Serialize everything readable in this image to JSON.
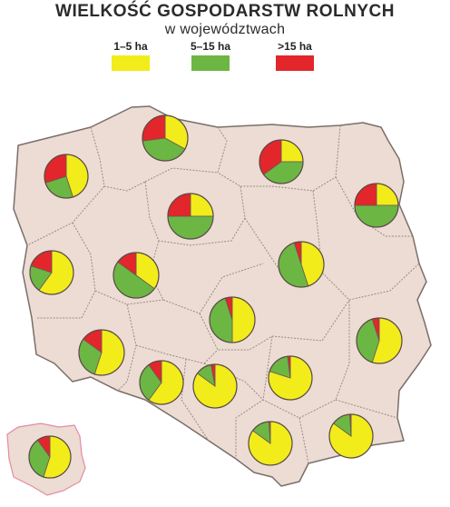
{
  "title": "WIELKOŚĆ GOSPODARSTW ROLNYCH",
  "subtitle": "w województwach",
  "colors": {
    "small": "#f2ec1a",
    "medium": "#6cb644",
    "large": "#e2262b",
    "land": "#ecdcd3",
    "border": "#7a6e6a",
    "inset_border": "#e58aa0"
  },
  "legend": [
    {
      "label": "1–5 ha",
      "color": "#f2ec1a"
    },
    {
      "label": "5–15 ha",
      "color": "#6cb644"
    },
    {
      "label": ">15 ha",
      "color": "#e2262b"
    }
  ],
  "chart_data": {
    "type": "pie",
    "categories": [
      "1–5 ha",
      "5–15 ha",
      ">15 ha"
    ],
    "pies": [
      {
        "id": "pomorskie",
        "values": [
          33,
          40,
          27
        ]
      },
      {
        "id": "zachodniopomorskie",
        "values": [
          45,
          25,
          30
        ]
      },
      {
        "id": "warminsko-mazurskie",
        "values": [
          25,
          40,
          35
        ]
      },
      {
        "id": "podlaskie",
        "values": [
          25,
          50,
          25
        ]
      },
      {
        "id": "kujawsko-pomorskie",
        "values": [
          25,
          50,
          25
        ]
      },
      {
        "id": "mazowieckie",
        "values": [
          45,
          50,
          5
        ]
      },
      {
        "id": "lubuskie",
        "values": [
          60,
          20,
          20
        ]
      },
      {
        "id": "wielkopolskie",
        "values": [
          35,
          50,
          15
        ]
      },
      {
        "id": "lodzkie",
        "values": [
          50,
          45,
          5
        ]
      },
      {
        "id": "dolnoslaskie",
        "values": [
          55,
          30,
          15
        ]
      },
      {
        "id": "lubelskie",
        "values": [
          55,
          40,
          5
        ]
      },
      {
        "id": "opolskie",
        "values": [
          60,
          30,
          10
        ]
      },
      {
        "id": "slaskie",
        "values": [
          85,
          12,
          3
        ]
      },
      {
        "id": "swietokrzyskie",
        "values": [
          80,
          18,
          2
        ]
      },
      {
        "id": "malopolskie",
        "values": [
          85,
          14,
          1
        ]
      },
      {
        "id": "podkarpackie",
        "values": [
          85,
          14,
          1
        ]
      },
      {
        "id": "polska",
        "values": [
          55,
          35,
          10
        ]
      }
    ]
  }
}
